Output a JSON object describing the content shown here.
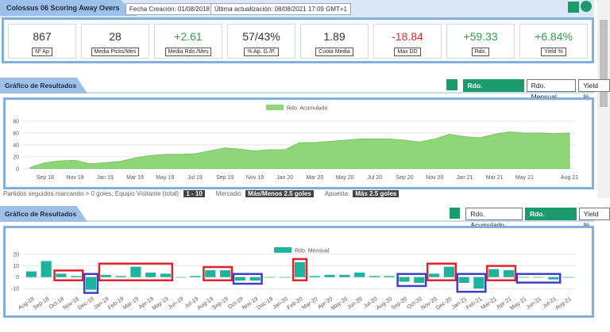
{
  "header": {
    "title": "Colossus 06 Scoring Away Overs",
    "created": "Fecha Creación: 01/08/2018",
    "updated": "Última actualización: 08/08/2021 17:09 GMT+1"
  },
  "stats": [
    {
      "value": "867",
      "label": "Nº Ap",
      "color": "#333333"
    },
    {
      "value": "28",
      "label": "Media Picks/Mes",
      "color": "#333333"
    },
    {
      "value": "+2.61",
      "label": "Media Rdo./Mes",
      "color": "#2e9e4a"
    },
    {
      "value": "57/43%",
      "label": "% Ap. G./P.",
      "color": "#333333"
    },
    {
      "value": "1.89",
      "label": "Cuota Media",
      "color": "#333333"
    },
    {
      "value": "-18.84",
      "label": "Max DD",
      "color": "#d92b2b"
    },
    {
      "value": "+59.33",
      "label": "Rdo.",
      "color": "#2e9e4a"
    },
    {
      "value": "+6.84%",
      "label": "Yield %",
      "color": "#2e9e4a"
    }
  ],
  "sections": [
    {
      "title": "Gráfico de Resultados",
      "buttons": [
        "Rdo. Acumulado",
        "Rdo. Mensual",
        "Yield %"
      ],
      "active": 0
    },
    {
      "title": "Gráfico de Resultados",
      "buttons": [
        "Rdo. Acumulado",
        "Rdo. Mensual",
        "Yield %"
      ],
      "active": 1
    }
  ],
  "info_row": [
    "Partidos seguidos marcando > 0 goles, Equipo Visitante (total):",
    "1 - 10",
    "Mercado:",
    "Más/Menos 2.5 goles",
    "Apuesta:",
    "Más 2.5 goles"
  ],
  "chart_data": [
    {
      "type": "area",
      "categories": [
        null,
        "Sep 18",
        null,
        "Nov 18",
        null,
        "Jan 19",
        null,
        "Mar 19",
        null,
        "May 19",
        null,
        "Jul 19",
        null,
        "Sep 19",
        null,
        "Nov 19",
        null,
        "Jan 20",
        null,
        "Mar 20",
        null,
        "May 20",
        null,
        "Jul 20",
        null,
        "Sep 20",
        null,
        "Nov 20",
        null,
        "Jan 21",
        null,
        "Mar 21",
        null,
        "May 21",
        null,
        null,
        "Aug 21"
      ],
      "series": [
        {
          "name": "Rdo. Acumulado",
          "color": "#8fd67a",
          "values": [
            2,
            10,
            13,
            14,
            8,
            10,
            12,
            18,
            22,
            24,
            24,
            25,
            30,
            35,
            33,
            30,
            32,
            32,
            44,
            44,
            46,
            48,
            50,
            50,
            50,
            48,
            45,
            50,
            58,
            54,
            52,
            58,
            62,
            60,
            60,
            59,
            60
          ]
        }
      ],
      "ylim": [
        -3,
        88
      ],
      "yticks": [
        0,
        20,
        40,
        60,
        80
      ],
      "grid": true
    },
    {
      "type": "bar",
      "categories": [
        "Aug-18",
        "Sep-18",
        "Oct-18",
        "Nov-18",
        "Dec-18",
        "Jan-19",
        "Feb-19",
        "Mar-19",
        "Apr-19",
        "May-19",
        "Jun-19",
        "Jul-19",
        "Aug-19",
        "Sep-19",
        "Oct-19",
        "Nov-19",
        "Dec-19",
        "Jan-20",
        "Feb-20",
        "Mar-20",
        "Apr-20",
        "May-20",
        "Jun-20",
        "Jul-20",
        "Aug-20",
        "Sep-20",
        "Oct-20",
        "Nov-20",
        "Dec-20",
        "Jan-21",
        "Feb-21",
        "Mar-21",
        "Apr-21",
        "May-21",
        "Jun-21",
        "Jul-21",
        "Aug-21"
      ],
      "series": [
        {
          "name": "Rdo. Mensual",
          "color": "#1fb39d",
          "values": [
            5,
            14,
            3,
            1,
            -11,
            2,
            1,
            9,
            4,
            3,
            0,
            1,
            6,
            6,
            -3,
            -3,
            0,
            0,
            13,
            1,
            2,
            2,
            4,
            1,
            1,
            -4,
            -5,
            3,
            9,
            -5,
            -10,
            7,
            6,
            0,
            0,
            -2,
            0
          ]
        }
      ],
      "ylim": [
        -14,
        24
      ],
      "yticks": [
        -10,
        0,
        10,
        20
      ],
      "grid": true
    }
  ]
}
